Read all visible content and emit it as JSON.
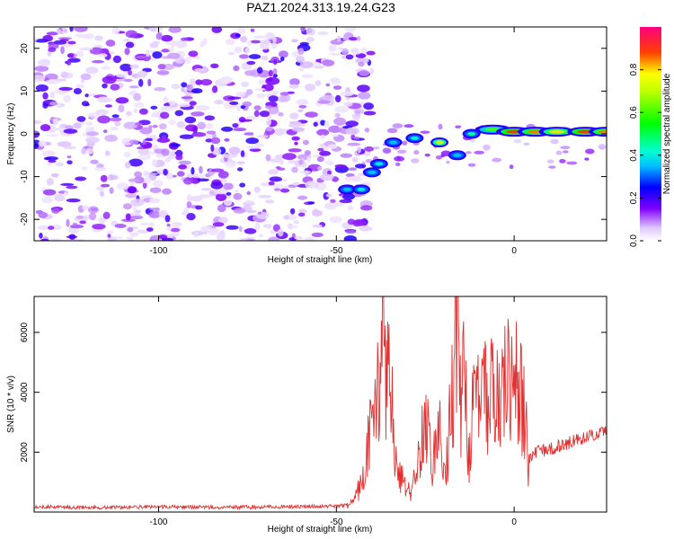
{
  "figure_title": "PAZ1.2024.313.19.24.G23",
  "colors": {
    "snr_line": "#e03030",
    "axis": "#000000",
    "colormap": [
      "#ffffff",
      "#e8d8ff",
      "#b080ff",
      "#6a00ff",
      "#0000ff",
      "#00a0ff",
      "#00ffff",
      "#00ff80",
      "#00ff00",
      "#80ff00",
      "#ffff00",
      "#ff8000",
      "#ff0000",
      "#ff0080"
    ]
  },
  "chart_data": [
    {
      "type": "heatmap",
      "xlabel": "Height of straight line (km)",
      "ylabel": "Frequency (Hz)",
      "xlim": [
        -135,
        26
      ],
      "ylim": [
        -25,
        25
      ],
      "xticks": [
        -100,
        -50,
        0
      ],
      "yticks": [
        -20,
        -10,
        0,
        10,
        20
      ],
      "colorbar": {
        "label": "Normalized spectral amplitude",
        "range": [
          0,
          1
        ],
        "ticks": [
          "0.0",
          "0.2",
          "0.4",
          "0.6",
          "0.8"
        ]
      },
      "hot_path": [
        {
          "x": -47,
          "y": -13,
          "v": 0.35
        },
        {
          "x": -43,
          "y": -13,
          "v": 0.4
        },
        {
          "x": -40,
          "y": -9,
          "v": 0.35
        },
        {
          "x": -38,
          "y": -7,
          "v": 0.4
        },
        {
          "x": -34,
          "y": -2,
          "v": 0.35
        },
        {
          "x": -28,
          "y": -1,
          "v": 0.4
        },
        {
          "x": -21,
          "y": -2,
          "v": 0.75
        },
        {
          "x": -16,
          "y": -5,
          "v": 0.35
        },
        {
          "x": -12,
          "y": 0,
          "v": 0.45
        },
        {
          "x": -6,
          "y": 1,
          "v": 0.6
        },
        {
          "x": 0,
          "y": 0.5,
          "v": 0.9
        },
        {
          "x": 6,
          "y": 0.5,
          "v": 0.85
        },
        {
          "x": 12,
          "y": 0.5,
          "v": 0.8
        },
        {
          "x": 20,
          "y": 0.5,
          "v": 0.9
        },
        {
          "x": 26,
          "y": 0.5,
          "v": 0.85
        }
      ]
    },
    {
      "type": "line",
      "xlabel": "Height of straight line (km)",
      "ylabel": "SNR (10 * v/v)",
      "xlim": [
        -135,
        26
      ],
      "ylim": [
        0,
        7200
      ],
      "xticks": [
        -100,
        -50,
        0
      ],
      "yticks": [
        2000,
        4000,
        6000
      ],
      "series": [
        {
          "x": [
            -135,
            -120,
            -100,
            -80,
            -60,
            -50,
            -46,
            -43,
            -41,
            -39,
            -38,
            -37,
            -36,
            -35,
            -33,
            -31,
            -29,
            -27,
            -25,
            -23,
            -21,
            -19,
            -17,
            -16,
            -15,
            -14,
            -13,
            -11,
            -9,
            -7,
            -5,
            -3,
            -1,
            0,
            2,
            3,
            4,
            6,
            10,
            15,
            20,
            26
          ],
          "y": [
            180,
            150,
            170,
            160,
            180,
            200,
            250,
            900,
            2200,
            3500,
            4800,
            7200,
            5000,
            4200,
            1500,
            900,
            600,
            1800,
            3200,
            1500,
            2800,
            1800,
            4400,
            7100,
            3200,
            5200,
            1800,
            3800,
            3900,
            3900,
            4100,
            4200,
            4300,
            4400,
            3600,
            3300,
            1700,
            2000,
            2100,
            2300,
            2500,
            2700
          ]
        }
      ]
    }
  ]
}
